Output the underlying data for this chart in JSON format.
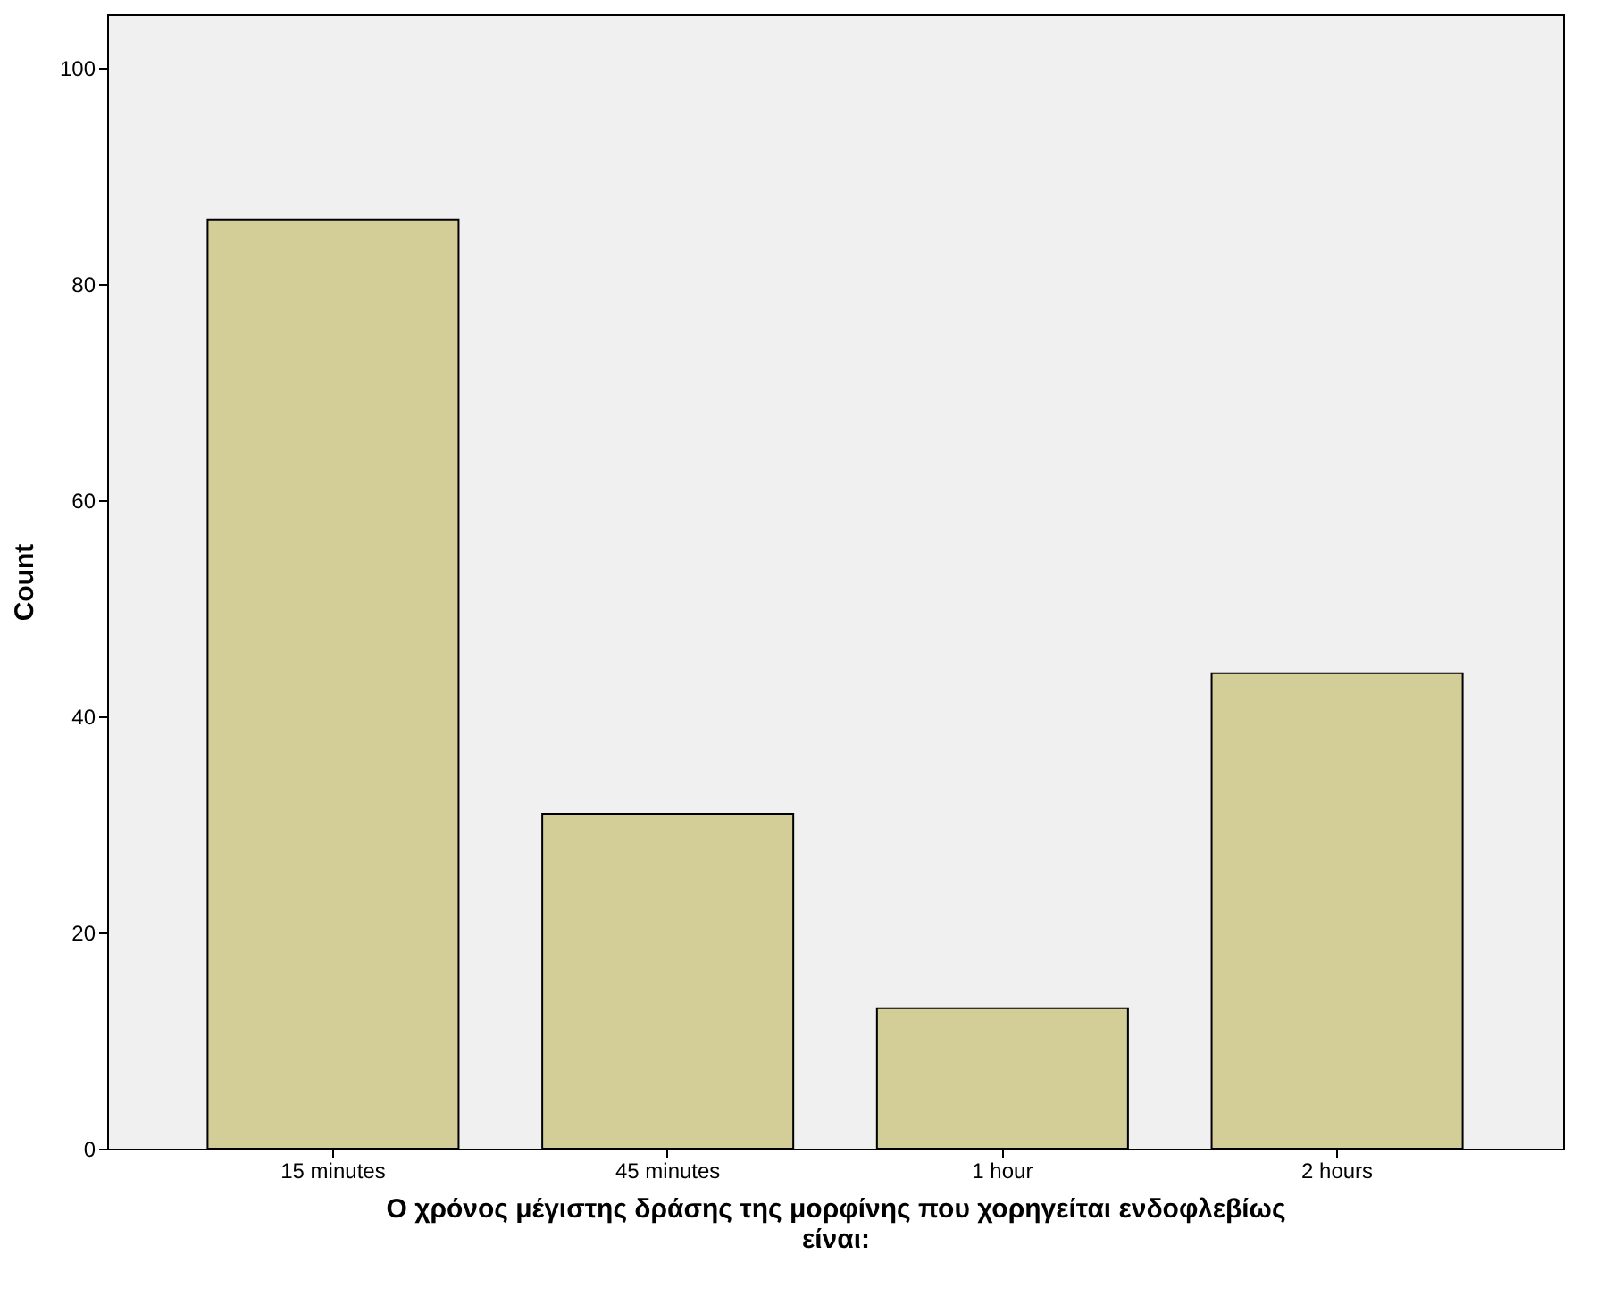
{
  "chart_data": {
    "type": "bar",
    "xlabel": "Ο χρόνος μέγιστης δράσης της μορφίνης που χορηγείται ενδοφλεβίως είναι:",
    "ylabel": "Count",
    "categories": [
      "15 minutes",
      "45 minutes",
      "1 hour",
      "2 hours"
    ],
    "values": [
      86,
      31,
      13,
      44
    ],
    "color": "#d3ce97",
    "ylim": [
      0,
      105
    ],
    "yticks": [
      0,
      20,
      40,
      60,
      80,
      100
    ],
    "grid": false
  }
}
